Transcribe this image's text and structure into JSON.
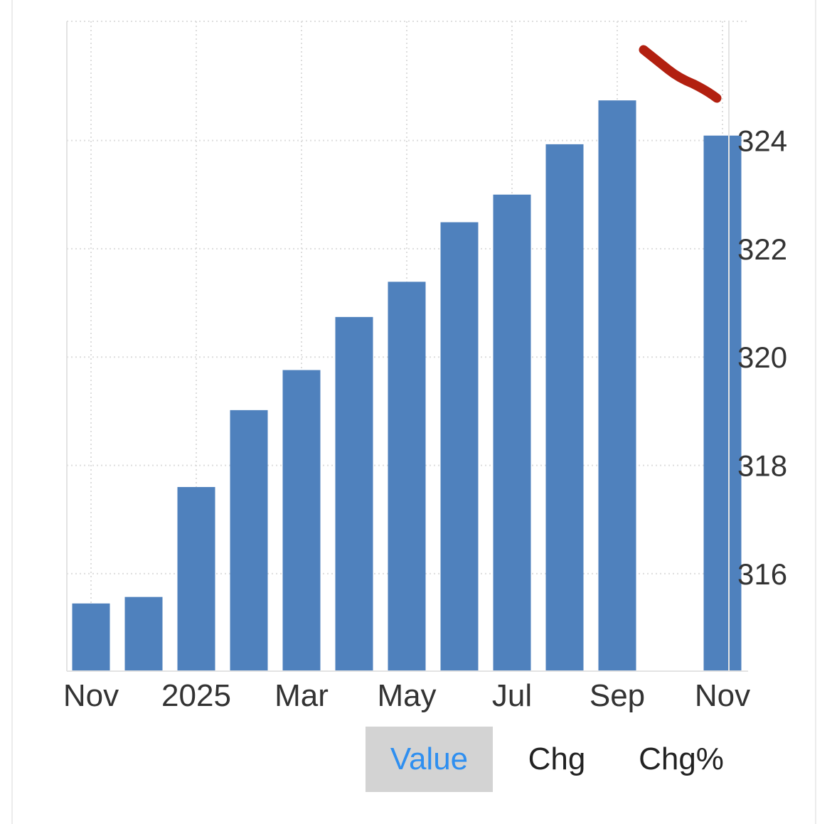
{
  "chart_data": {
    "type": "bar",
    "x_tick_labels": [
      "Nov",
      "2025",
      "Mar",
      "May",
      "Jul",
      "Sep",
      "Nov"
    ],
    "categories": [
      "Nov 2024",
      "Dec 2024",
      "Jan 2025",
      "Feb 2025",
      "Mar 2025",
      "Apr 2025",
      "May 2025",
      "Jun 2025",
      "Jul 2025",
      "Aug 2025",
      "Sep 2025",
      "Oct 2025",
      "Nov 2025"
    ],
    "values": [
      315.45,
      315.57,
      317.6,
      319.02,
      319.76,
      320.74,
      321.39,
      322.49,
      323.0,
      323.93,
      324.74,
      null,
      324.09
    ],
    "y_ticks": [
      316,
      318,
      320,
      322,
      324
    ],
    "ylim": [
      314.2,
      326.2
    ],
    "y_axis_position": "right",
    "grid": true,
    "bar_color": "#4f81bd",
    "annotation": {
      "type": "hand-drawn stroke",
      "color": "#b22010",
      "placement": "top-right, above last bar"
    }
  },
  "view_toggle": {
    "options": [
      "Value",
      "Chg",
      "Chg%"
    ],
    "selected": "Value",
    "active_color": "#2f8ff0",
    "active_background": "#d3d3d3"
  }
}
